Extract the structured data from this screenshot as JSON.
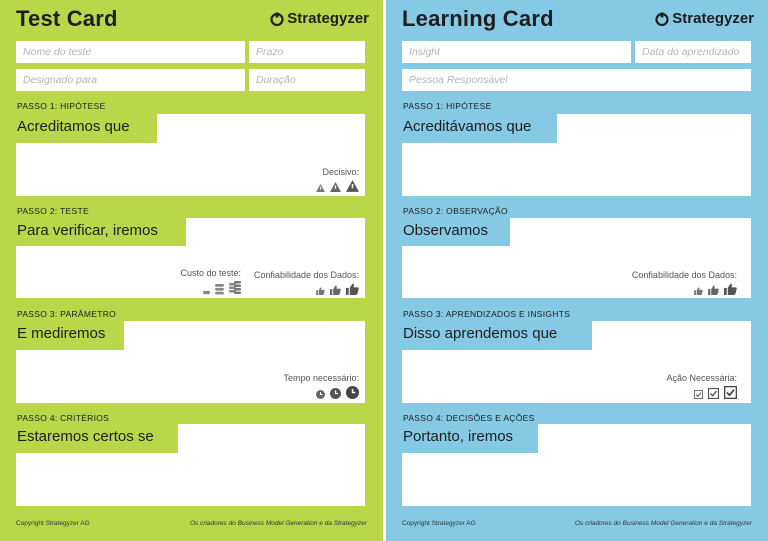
{
  "brand": "Strategyzer",
  "colors": {
    "test_card": "#b9d748",
    "learning_card": "#86c9e4"
  },
  "test_card": {
    "title": "Test Card",
    "fields": {
      "test_name": "Nome do teste",
      "deadline": "Prazo",
      "assigned_to": "Designado para",
      "duration": "Duração"
    },
    "steps": [
      {
        "label": "PASSO 1: HIPÓTESE",
        "prompt": "Acreditamos que",
        "meter_label": "Decisivo:",
        "meter_icons": "warning-icon"
      },
      {
        "label": "PASSO 2: TESTE",
        "prompt": "Para verificar, iremos",
        "meter_label": "Custo do teste:",
        "meter_icons": "coin-stack-icon",
        "meter2_label": "Confiabilidade dos Dados:",
        "meter2_icons": "thumbs-up-icon"
      },
      {
        "label": "PASSO 3: PARÂMETRO",
        "prompt": "E mediremos",
        "meter_label": "Tempo necessário:",
        "meter_icons": "clock-icon"
      },
      {
        "label": "PASSO 4: CRITÉRIOS",
        "prompt": "Estaremos certos se"
      }
    ],
    "footer_left": "Copyright Strategyzer AG",
    "footer_right": "Os criadores do Business Model Generation e da Strategyzer"
  },
  "learning_card": {
    "title": "Learning Card",
    "fields": {
      "insight": "Insight",
      "learning_date": "Data do aprendizado",
      "responsible": "Pessoa Responsável"
    },
    "steps": [
      {
        "label": "PASSO 1: HIPÓTESE",
        "prompt": "Acreditávamos que"
      },
      {
        "label": "PASSO 2: OBSERVAÇÃO",
        "prompt": "Observamos",
        "meter_label": "Confiabilidade dos Dados:",
        "meter_icons": "thumbs-up-icon"
      },
      {
        "label": "PASSO 3: APRENDIZADOS E INSIGHTS",
        "prompt": "Disso aprendemos que",
        "meter_label": "Ação Necessária:",
        "meter_icons": "checkbox-icon"
      },
      {
        "label": "PASSO 4: DECISÕES E AÇÕES",
        "prompt": "Portanto, iremos"
      }
    ],
    "footer_left": "Copyright Strategyzer AG",
    "footer_right": "Os criadores do Business Model Generation e da Strategyzer"
  }
}
